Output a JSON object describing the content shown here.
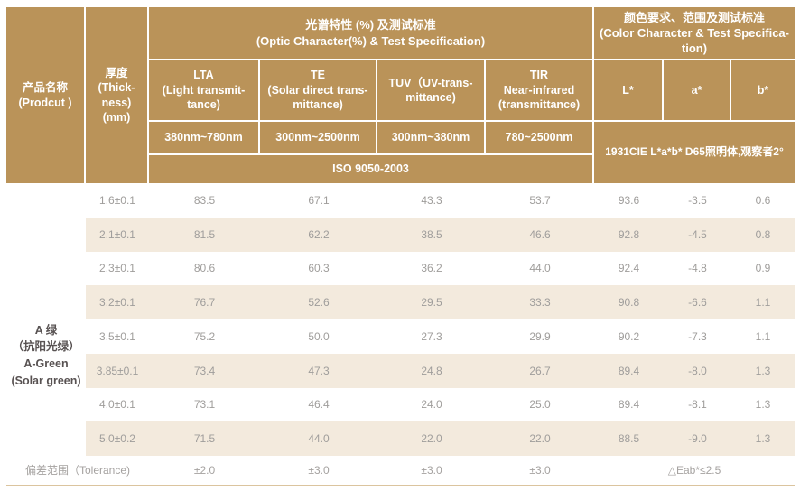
{
  "colors": {
    "header_bg": "#ba9359",
    "stripe_bg": "#f3eadd",
    "bottom_line": "#dbc49e",
    "data_text": "#9f9d9b",
    "product_text": "#585252"
  },
  "table": {
    "header": {
      "product": "产品名称\n(Prodcut )",
      "thickness": "厚度\n(Thick-\nness)\n(mm)",
      "optic_group": "光谱特性 (%) 及测试标准\n(Optic Character(%) & Test Specification)",
      "color_group": "颜色要求、范围及测试标准\n(Color Character & Test Specifica-\ntion)",
      "lta": "LTA\n(Light transmit-\ntance)",
      "te": "TE\n(Solar direct trans-\nmittance)",
      "tuv": "TUV（UV-trans-\nmittance)",
      "tir": "TIR\nNear-infrared\n(transmittance)",
      "l": "L*",
      "a": "a*",
      "b": "b*",
      "range_lta": "380nm~780nm",
      "range_te": "300nm~2500nm",
      "range_tuv": "300nm~380nm",
      "range_tir": "780~2500nm",
      "iso": "ISO 9050-2003",
      "cie": "1931CIE L*a*b*  D65照明体,观察者2°"
    },
    "product_name": "A 绿\n（抗阳光绿）\nA-Green\n(Solar green)",
    "rows": [
      {
        "thickness": "1.6±0.1",
        "lta": "83.5",
        "te": "67.1",
        "tuv": "43.3",
        "tir": "53.7",
        "l": "93.6",
        "a": "-3.5",
        "b": "0.6"
      },
      {
        "thickness": "2.1±0.1",
        "lta": "81.5",
        "te": "62.2",
        "tuv": "38.5",
        "tir": "46.6",
        "l": "92.8",
        "a": "-4.5",
        "b": "0.8"
      },
      {
        "thickness": "2.3±0.1",
        "lta": "80.6",
        "te": "60.3",
        "tuv": "36.2",
        "tir": "44.0",
        "l": "92.4",
        "a": "-4.8",
        "b": "0.9"
      },
      {
        "thickness": "3.2±0.1",
        "lta": "76.7",
        "te": "52.6",
        "tuv": "29.5",
        "tir": "33.3",
        "l": "90.8",
        "a": "-6.6",
        "b": "1.1"
      },
      {
        "thickness": "3.5±0.1",
        "lta": "75.2",
        "te": "50.0",
        "tuv": "27.3",
        "tir": "29.9",
        "l": "90.2",
        "a": "-7.3",
        "b": "1.1"
      },
      {
        "thickness": "3.85±0.1",
        "lta": "73.4",
        "te": "47.3",
        "tuv": "24.8",
        "tir": "26.7",
        "l": "89.4",
        "a": "-8.0",
        "b": "1.3"
      },
      {
        "thickness": "4.0±0.1",
        "lta": "73.1",
        "te": "46.4",
        "tuv": "24.0",
        "tir": "25.0",
        "l": "89.4",
        "a": "-8.1",
        "b": "1.3"
      },
      {
        "thickness": "5.0±0.2",
        "lta": "71.5",
        "te": "44.0",
        "tuv": "22.0",
        "tir": "22.0",
        "l": "88.5",
        "a": "-9.0",
        "b": "1.3"
      }
    ],
    "tolerance": {
      "label": "偏差范围（Tolerance)",
      "lta": "±2.0",
      "te": "±3.0",
      "tuv": "±3.0",
      "tir": "±3.0",
      "eab": "△Eab*≤2.5"
    }
  }
}
